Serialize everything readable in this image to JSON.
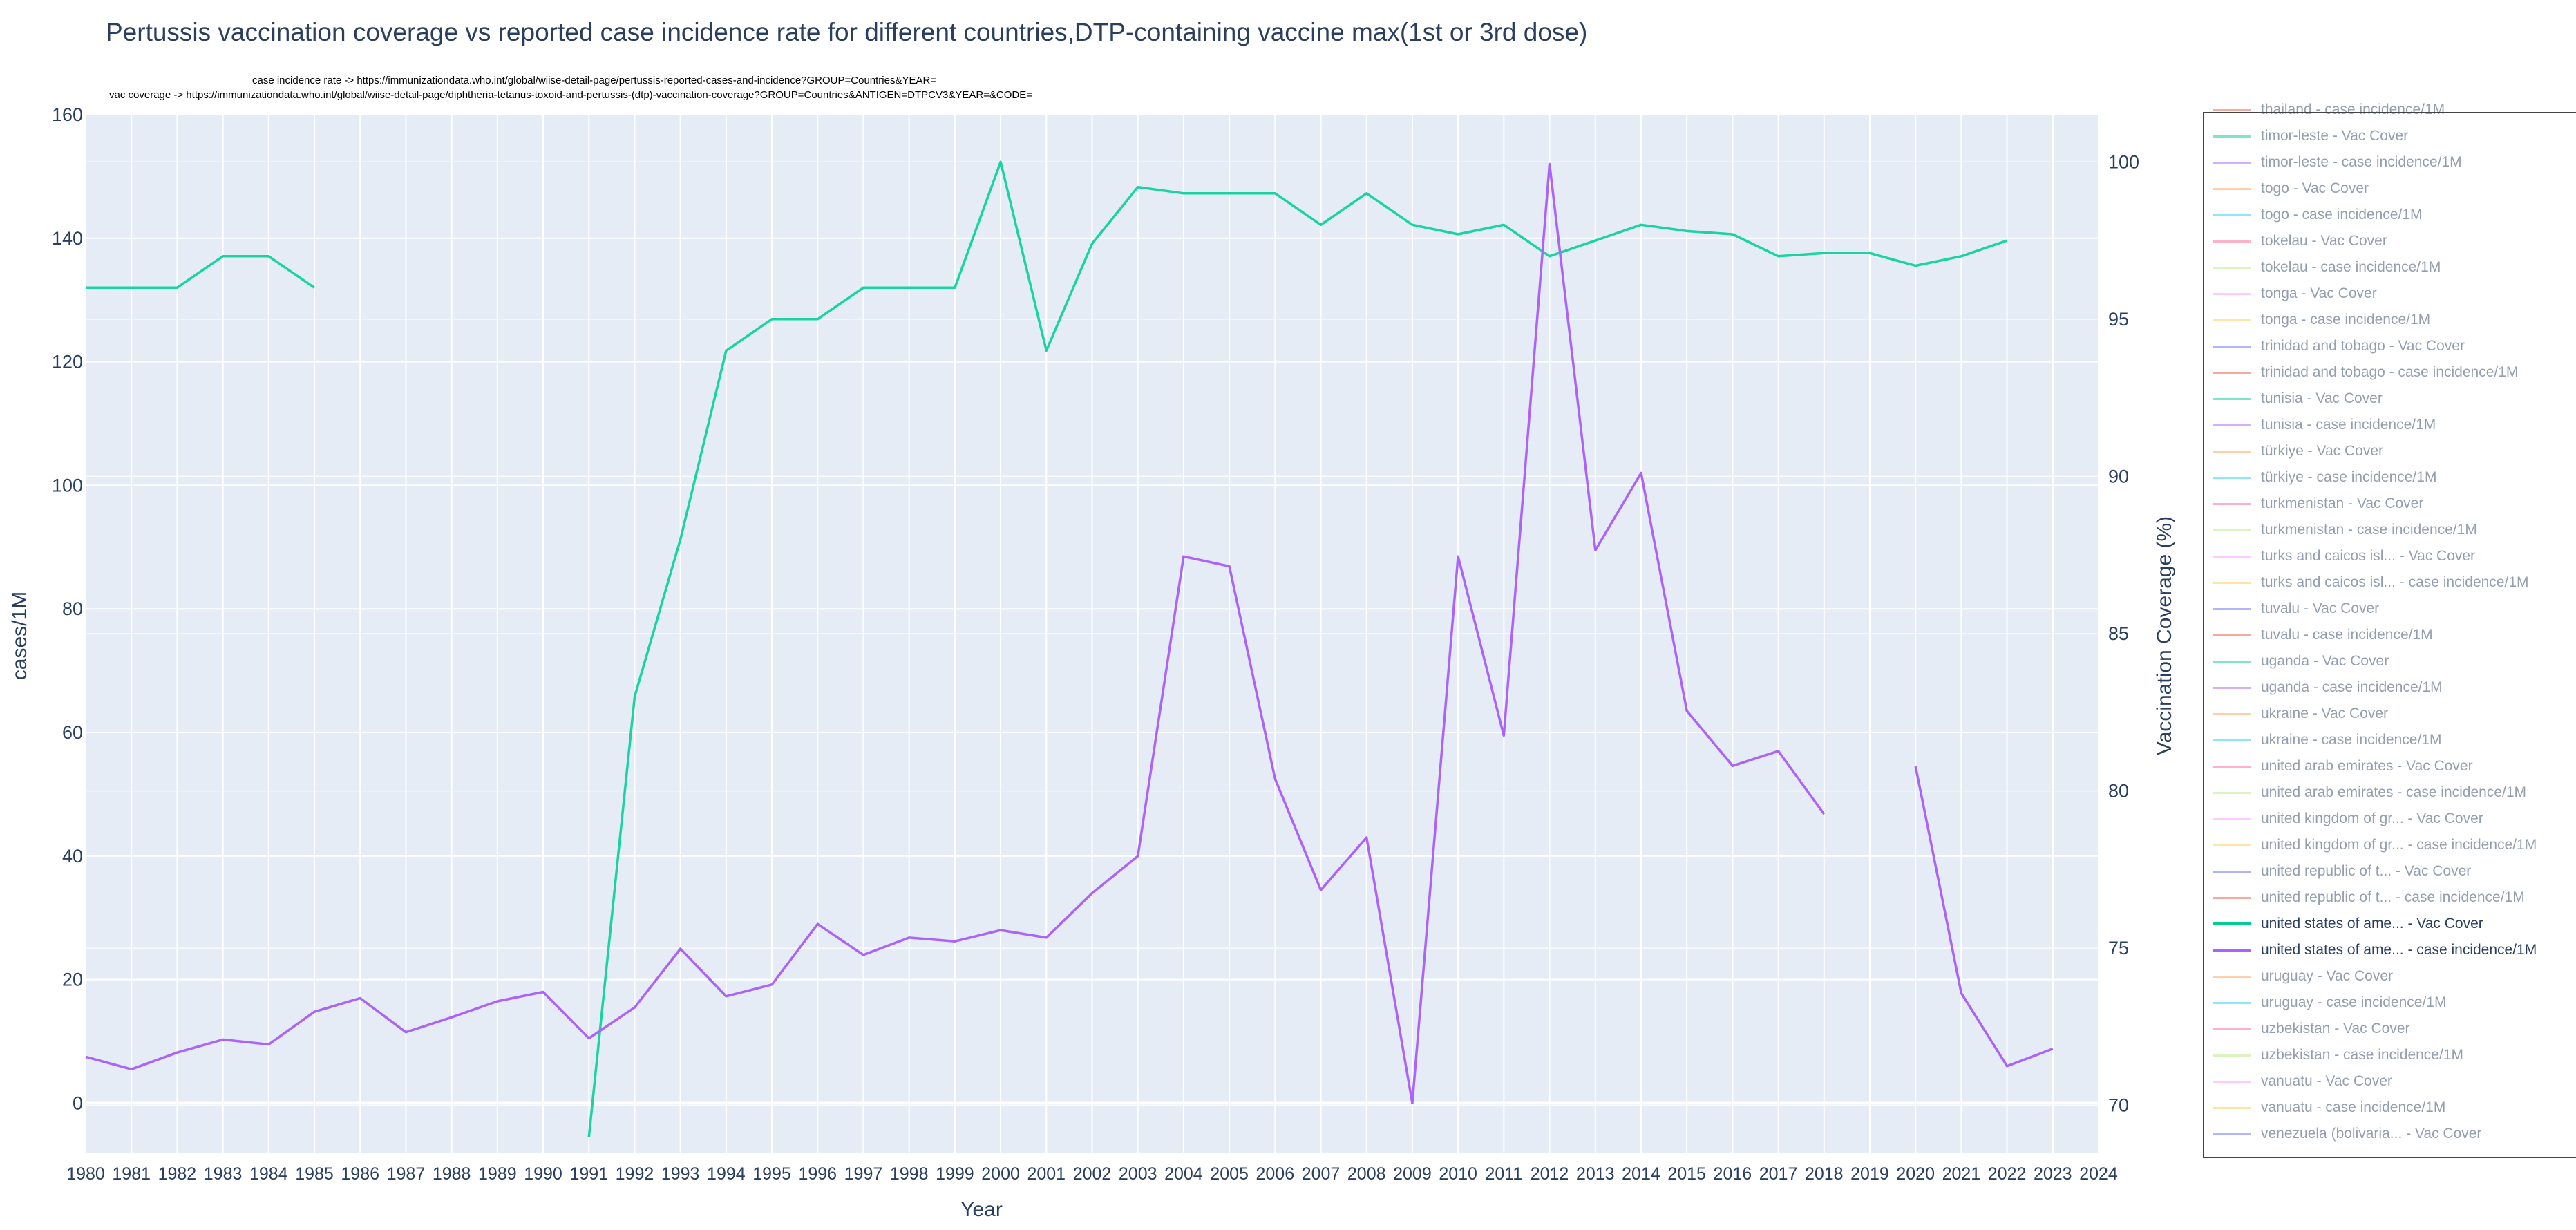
{
  "title": "Pertussis vaccination coverage vs reported case incidence rate for different countries,DTP-containing vaccine max(1st or 3rd dose)",
  "source_line_1": "case incidence rate -> https://immunizationdata.who.int/global/wiise-detail-page/pertussis-reported-cases-and-incidence?GROUP=Countries&YEAR=",
  "source_line_2": "vac coverage -> https://immunizationdata.who.int/global/wiise-detail-page/diphtheria-tetanus-toxoid-and-pertussis-(dtp)-vaccination-coverage?GROUP=Countries&ANTIGEN=DTPCV3&YEAR=&CODE=",
  "colors": {
    "vac": "#19d3a2",
    "cases": "#ab63fa",
    "plot_bg": "#e5ecf6",
    "grid": "#ffffff"
  },
  "chart_data": {
    "type": "line",
    "title": "Pertussis vaccination coverage vs reported case incidence rate for different countries,DTP-containing vaccine max(1st or 3rd dose)",
    "xlabel": "Year",
    "ylabel_left": "cases/1M",
    "ylabel_right": "Vaccination Coverage (%)",
    "x": [
      1980,
      1981,
      1982,
      1983,
      1984,
      1985,
      1986,
      1987,
      1988,
      1989,
      1990,
      1991,
      1992,
      1993,
      1994,
      1995,
      1996,
      1997,
      1998,
      1999,
      2000,
      2001,
      2002,
      2003,
      2004,
      2005,
      2006,
      2007,
      2008,
      2009,
      2010,
      2011,
      2012,
      2013,
      2014,
      2015,
      2016,
      2017,
      2018,
      2019,
      2020,
      2021,
      2022,
      2023,
      2024
    ],
    "xlim": [
      1980,
      2024
    ],
    "ylim_left": [
      -8,
      160
    ],
    "ylim_right": [
      68.5,
      101.5
    ],
    "left_ticks": [
      0,
      20,
      40,
      60,
      80,
      100,
      120,
      140,
      160
    ],
    "right_ticks": [
      70,
      75,
      80,
      85,
      90,
      95,
      100
    ],
    "grid": true,
    "series": [
      {
        "name": "united states of ame... - Vac Cover",
        "axis": "right",
        "color": "#19d3a2",
        "values": [
          96,
          96,
          96,
          97,
          97,
          96,
          null,
          null,
          null,
          null,
          null,
          69,
          83,
          88,
          94,
          95,
          95,
          96,
          96,
          96,
          100,
          94,
          97.4,
          99.2,
          99,
          99,
          99,
          98,
          99,
          98,
          97.7,
          98,
          97,
          97.5,
          98,
          97.8,
          97.7,
          97,
          97.1,
          97.1,
          96.7,
          97,
          97.5,
          null,
          null
        ]
      },
      {
        "name": "united states of ame... - case incidence/1M",
        "axis": "left",
        "color": "#ab63fa",
        "values": [
          7.5,
          5.5,
          8.2,
          10.3,
          9.5,
          14.8,
          17,
          11.5,
          13.9,
          16.5,
          18,
          10.5,
          15.5,
          25,
          17.3,
          19.2,
          29,
          24,
          26.8,
          26.2,
          28,
          26.8,
          34,
          40,
          88.5,
          86.9,
          52.5,
          34.5,
          43,
          0,
          88.5,
          59.5,
          152,
          89.5,
          102,
          63.5,
          54.6,
          57,
          46.8,
          null,
          54.5,
          17.8,
          6,
          8.8,
          null
        ]
      }
    ],
    "legend_placement": "right"
  },
  "legend": {
    "items": [
      {
        "label": "thailand - case incidence/1M",
        "color": "#ef553b",
        "active": false
      },
      {
        "label": "timor-leste - Vac Cover",
        "color": "#00cc96",
        "active": false
      },
      {
        "label": "timor-leste - case incidence/1M",
        "color": "#ab63fa",
        "active": false
      },
      {
        "label": "togo - Vac Cover",
        "color": "#ffa15a",
        "active": false
      },
      {
        "label": "togo - case incidence/1M",
        "color": "#19d3f3",
        "active": false
      },
      {
        "label": "tokelau - Vac Cover",
        "color": "#ff6692",
        "active": false
      },
      {
        "label": "tokelau - case incidence/1M",
        "color": "#b6e880",
        "active": false
      },
      {
        "label": "tonga - Vac Cover",
        "color": "#ff97ff",
        "active": false
      },
      {
        "label": "tonga - case incidence/1M",
        "color": "#fecb52",
        "active": false
      },
      {
        "label": "trinidad and tobago - Vac Cover",
        "color": "#636efa",
        "active": false
      },
      {
        "label": "trinidad and tobago - case incidence/1M",
        "color": "#ef553b",
        "active": false
      },
      {
        "label": "tunisia - Vac Cover",
        "color": "#00cc96",
        "active": false
      },
      {
        "label": "tunisia - case incidence/1M",
        "color": "#ab63fa",
        "active": false
      },
      {
        "label": "türkiye - Vac Cover",
        "color": "#ffa15a",
        "active": false
      },
      {
        "label": "türkiye - case incidence/1M",
        "color": "#19d3f3",
        "active": false
      },
      {
        "label": "turkmenistan - Vac Cover",
        "color": "#ff6692",
        "active": false
      },
      {
        "label": "turkmenistan - case incidence/1M",
        "color": "#b6e880",
        "active": false
      },
      {
        "label": "turks and caicos isl... - Vac Cover",
        "color": "#ff97ff",
        "active": false
      },
      {
        "label": "turks and caicos isl... - case incidence/1M",
        "color": "#fecb52",
        "active": false
      },
      {
        "label": "tuvalu - Vac Cover",
        "color": "#636efa",
        "active": false
      },
      {
        "label": "tuvalu - case incidence/1M",
        "color": "#ef553b",
        "active": false
      },
      {
        "label": "uganda - Vac Cover",
        "color": "#00cc96",
        "active": false
      },
      {
        "label": "uganda - case incidence/1M",
        "color": "#ab63fa",
        "active": false
      },
      {
        "label": "ukraine - Vac Cover",
        "color": "#ffa15a",
        "active": false
      },
      {
        "label": "ukraine - case incidence/1M",
        "color": "#19d3f3",
        "active": false
      },
      {
        "label": "united arab emirates - Vac Cover",
        "color": "#ff6692",
        "active": false
      },
      {
        "label": "united arab emirates - case incidence/1M",
        "color": "#b6e880",
        "active": false
      },
      {
        "label": "united kingdom of gr... - Vac Cover",
        "color": "#ff97ff",
        "active": false
      },
      {
        "label": "united kingdom of gr... - case incidence/1M",
        "color": "#fecb52",
        "active": false
      },
      {
        "label": "united republic of t... - Vac Cover",
        "color": "#636efa",
        "active": false
      },
      {
        "label": "united republic of t... - case incidence/1M",
        "color": "#ef553b",
        "active": false
      },
      {
        "label": "united states of ame... - Vac Cover",
        "color": "#00cc96",
        "active": true
      },
      {
        "label": "united states of ame... - case incidence/1M",
        "color": "#ab63fa",
        "active": true
      },
      {
        "label": "uruguay - Vac Cover",
        "color": "#ffa15a",
        "active": false
      },
      {
        "label": "uruguay - case incidence/1M",
        "color": "#19d3f3",
        "active": false
      },
      {
        "label": "uzbekistan - Vac Cover",
        "color": "#ff6692",
        "active": false
      },
      {
        "label": "uzbekistan - case incidence/1M",
        "color": "#b6e880",
        "active": false
      },
      {
        "label": "vanuatu - Vac Cover",
        "color": "#ff97ff",
        "active": false
      },
      {
        "label": "vanuatu - case incidence/1M",
        "color": "#fecb52",
        "active": false
      },
      {
        "label": "venezuela (bolivaria... - Vac Cover",
        "color": "#636efa",
        "active": false
      }
    ]
  }
}
